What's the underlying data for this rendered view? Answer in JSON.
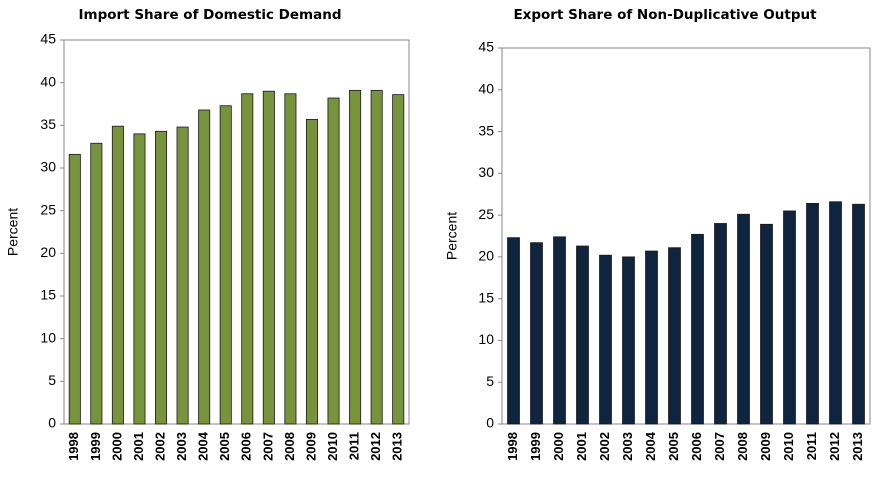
{
  "chart_data": [
    {
      "type": "bar",
      "title": "Import Share of Domestic Demand",
      "ylabel": "Percent",
      "categories": [
        "1998",
        "1999",
        "2000",
        "2001",
        "2002",
        "2003",
        "2004",
        "2005",
        "2006",
        "2007",
        "2008",
        "2009",
        "2010",
        "2011",
        "2012",
        "2013"
      ],
      "values": [
        31.6,
        32.9,
        34.9,
        34.0,
        34.3,
        34.8,
        36.8,
        37.3,
        38.7,
        39.0,
        38.7,
        35.7,
        38.2,
        39.1,
        39.1,
        38.6
      ],
      "color": "#77933c",
      "ylim": [
        0,
        45
      ],
      "yticks": [
        0,
        5,
        10,
        15,
        20,
        25,
        30,
        35,
        40,
        45
      ],
      "grid": false
    },
    {
      "type": "bar",
      "title": "Export Share of Non-Duplicative Output",
      "ylabel": "Percent",
      "categories": [
        "1998",
        "1999",
        "2000",
        "2001",
        "2002",
        "2003",
        "2004",
        "2005",
        "2006",
        "2007",
        "2008",
        "2009",
        "2010",
        "2011",
        "2012",
        "2013"
      ],
      "values": [
        22.3,
        21.7,
        22.4,
        21.3,
        20.2,
        20.0,
        20.7,
        21.1,
        22.7,
        24.0,
        25.1,
        23.9,
        25.5,
        26.4,
        26.6,
        26.3
      ],
      "color": "#0f243e",
      "ylim": [
        0,
        45
      ],
      "yticks": [
        0,
        5,
        10,
        15,
        20,
        25,
        30,
        35,
        40,
        45
      ],
      "grid": false
    }
  ]
}
